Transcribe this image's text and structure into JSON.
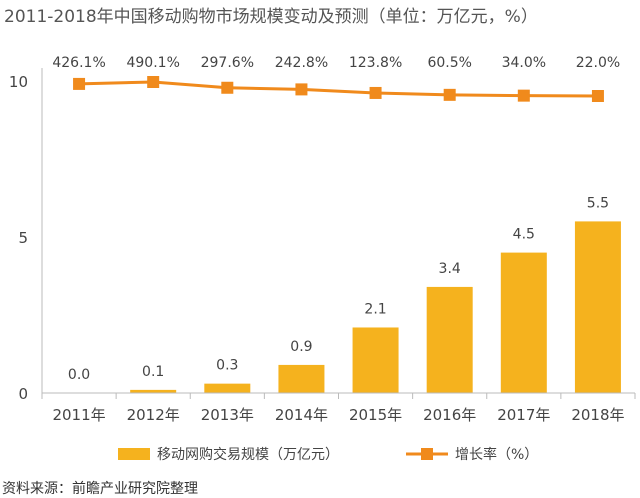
{
  "title": "2011-2018年中国移动购物市场规模变动及预测（单位：万亿元，%）",
  "source": "资料来源：前瞻产业研究院整理",
  "colors": {
    "bar": "#F5B21E",
    "line": "#F08A1C",
    "axis": "#bbbbbb"
  },
  "chart_data": {
    "type": "bar",
    "categories": [
      "2011年",
      "2012年",
      "2013年",
      "2014年",
      "2015年",
      "2016年",
      "2017年",
      "2018年"
    ],
    "series": [
      {
        "name": "移动网购交易规模（万亿元）",
        "type": "bar",
        "values": [
          0.0,
          0.1,
          0.3,
          0.9,
          2.1,
          3.4,
          4.5,
          5.5
        ],
        "labels": [
          "0.0",
          "0.1",
          "0.3",
          "0.9",
          "2.1",
          "3.4",
          "4.5",
          "5.5"
        ]
      },
      {
        "name": "增长率（%）",
        "type": "line",
        "marker": "square",
        "values": [
          426.1,
          490.1,
          297.6,
          242.8,
          123.8,
          60.5,
          34.0,
          22.0
        ],
        "labels": [
          "426.1%",
          "490.1%",
          "297.6%",
          "242.8%",
          "123.8%",
          "60.5%",
          "34.0%",
          "22.0%"
        ]
      }
    ],
    "yticks": [
      "0",
      "5",
      "10"
    ],
    "ylim": [
      0,
      10
    ],
    "grid": false,
    "legend_position": "bottom"
  }
}
